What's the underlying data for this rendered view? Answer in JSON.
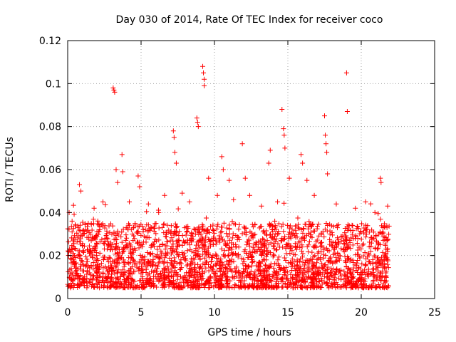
{
  "chart_data": {
    "type": "scatter",
    "title": "Day 030 of 2014, Rate Of TEC Index for receiver coco",
    "xlabel": "GPS time / hours",
    "ylabel": "ROTI / TECUs",
    "xlim": [
      0,
      25
    ],
    "ylim": [
      0,
      0.12
    ],
    "x_ticks": [
      0,
      5,
      10,
      15,
      20,
      25
    ],
    "x_tick_labels": [
      "0",
      "5",
      "10",
      "15",
      "20",
      "25"
    ],
    "y_ticks": [
      0,
      0.02,
      0.04,
      0.06,
      0.08,
      0.1,
      0.12
    ],
    "y_tick_labels": [
      "0",
      "0.02",
      "0.04",
      "0.06",
      "0.08",
      "0.1",
      "0.12"
    ],
    "grid": true,
    "marker": "+",
    "marker_color": "#ff0000",
    "series": [
      {
        "name": "ROTI",
        "dense_band": {
          "x_range": [
            0,
            21.9
          ],
          "y_range": [
            0.005,
            0.035
          ],
          "note": "thousands of overlapping points form a solid band"
        },
        "points": [
          {
            "x": 0.1,
            "y": 0.04
          },
          {
            "x": 0.3,
            "y": 0.036
          },
          {
            "x": 0.8,
            "y": 0.053
          },
          {
            "x": 0.9,
            "y": 0.05
          },
          {
            "x": 1.4,
            "y": 0.035
          },
          {
            "x": 1.8,
            "y": 0.042
          },
          {
            "x": 2.4,
            "y": 0.045
          },
          {
            "x": 3.1,
            "y": 0.098
          },
          {
            "x": 3.15,
            "y": 0.097
          },
          {
            "x": 3.2,
            "y": 0.096
          },
          {
            "x": 3.3,
            "y": 0.06
          },
          {
            "x": 3.4,
            "y": 0.054
          },
          {
            "x": 3.7,
            "y": 0.067
          },
          {
            "x": 3.75,
            "y": 0.059
          },
          {
            "x": 4.2,
            "y": 0.045
          },
          {
            "x": 4.8,
            "y": 0.057
          },
          {
            "x": 4.9,
            "y": 0.052
          },
          {
            "x": 5.5,
            "y": 0.044
          },
          {
            "x": 6.2,
            "y": 0.04
          },
          {
            "x": 6.6,
            "y": 0.048
          },
          {
            "x": 7.2,
            "y": 0.078
          },
          {
            "x": 7.25,
            "y": 0.075
          },
          {
            "x": 7.3,
            "y": 0.068
          },
          {
            "x": 7.4,
            "y": 0.063
          },
          {
            "x": 7.8,
            "y": 0.049
          },
          {
            "x": 8.3,
            "y": 0.045
          },
          {
            "x": 8.8,
            "y": 0.084
          },
          {
            "x": 8.85,
            "y": 0.082
          },
          {
            "x": 8.9,
            "y": 0.08
          },
          {
            "x": 9.2,
            "y": 0.108
          },
          {
            "x": 9.25,
            "y": 0.105
          },
          {
            "x": 9.3,
            "y": 0.102
          },
          {
            "x": 9.3,
            "y": 0.099
          },
          {
            "x": 9.6,
            "y": 0.056
          },
          {
            "x": 10.2,
            "y": 0.048
          },
          {
            "x": 10.5,
            "y": 0.066
          },
          {
            "x": 10.6,
            "y": 0.06
          },
          {
            "x": 11.0,
            "y": 0.055
          },
          {
            "x": 11.3,
            "y": 0.046
          },
          {
            "x": 11.9,
            "y": 0.072
          },
          {
            "x": 12.1,
            "y": 0.056
          },
          {
            "x": 12.4,
            "y": 0.048
          },
          {
            "x": 13.2,
            "y": 0.043
          },
          {
            "x": 13.7,
            "y": 0.063
          },
          {
            "x": 13.8,
            "y": 0.069
          },
          {
            "x": 14.3,
            "y": 0.045
          },
          {
            "x": 14.6,
            "y": 0.088
          },
          {
            "x": 14.7,
            "y": 0.079
          },
          {
            "x": 14.75,
            "y": 0.076
          },
          {
            "x": 14.8,
            "y": 0.07
          },
          {
            "x": 15.1,
            "y": 0.056
          },
          {
            "x": 15.9,
            "y": 0.067
          },
          {
            "x": 16.0,
            "y": 0.063
          },
          {
            "x": 16.3,
            "y": 0.055
          },
          {
            "x": 16.8,
            "y": 0.048
          },
          {
            "x": 17.5,
            "y": 0.085
          },
          {
            "x": 17.55,
            "y": 0.076
          },
          {
            "x": 17.6,
            "y": 0.072
          },
          {
            "x": 17.65,
            "y": 0.068
          },
          {
            "x": 17.7,
            "y": 0.058
          },
          {
            "x": 18.3,
            "y": 0.044
          },
          {
            "x": 19.0,
            "y": 0.105
          },
          {
            "x": 19.05,
            "y": 0.087
          },
          {
            "x": 19.6,
            "y": 0.042
          },
          {
            "x": 20.3,
            "y": 0.045
          },
          {
            "x": 21.3,
            "y": 0.056
          },
          {
            "x": 21.35,
            "y": 0.054
          },
          {
            "x": 21.8,
            "y": 0.043
          }
        ]
      }
    ]
  }
}
